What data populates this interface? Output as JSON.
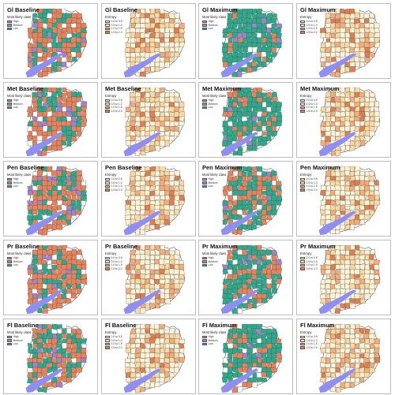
{
  "panels": [
    {
      "title": "Gl Baseline",
      "type": "class"
    },
    {
      "title": "Gl Baseline",
      "type": "entropy"
    },
    {
      "title": "Gl Maximum",
      "type": "class"
    },
    {
      "title": "Gl Maximum",
      "type": "entropy"
    },
    {
      "title": "Met Baseline",
      "type": "class"
    },
    {
      "title": "Met Baseline",
      "type": "entropy"
    },
    {
      "title": "Met Maximum",
      "type": "class"
    },
    {
      "title": "Met Maximum",
      "type": "entropy"
    },
    {
      "title": "Pen Baseline",
      "type": "class"
    },
    {
      "title": "Pen Baseline",
      "type": "entropy"
    },
    {
      "title": "Pen Maximum",
      "type": "class"
    },
    {
      "title": "Pen Maximum",
      "type": "entropy"
    },
    {
      "title": "Pr Baseline",
      "type": "class"
    },
    {
      "title": "Pr Baseline",
      "type": "entropy"
    },
    {
      "title": "Pr Maximum",
      "type": "class"
    },
    {
      "title": "Pr Maximum",
      "type": "entropy"
    },
    {
      "title": "Fl Baseline",
      "type": "class"
    },
    {
      "title": "Fl Baseline",
      "type": "entropy"
    },
    {
      "title": "Fl Maximum",
      "type": "class"
    },
    {
      "title": "Fl Maximum",
      "type": "entropy"
    }
  ],
  "legends": {
    "class": {
      "title": "Most likely class",
      "items": [
        {
          "label": "High",
          "color": "#e8825a"
        },
        {
          "label": "Medium",
          "color": "#a083c9"
        },
        {
          "label": "Low",
          "color": "#2fa98c"
        }
      ]
    },
    "entropy": {
      "title": "Entropy",
      "items": [
        {
          "label": "0.0 to 0.5",
          "color": "#fff3d6"
        },
        {
          "label": "0.5 to 1.0",
          "color": "#fbd9a2"
        },
        {
          "label": "1.0 to 1.5",
          "color": "#f3ad7a"
        },
        {
          "label": "1.5 to 2.0",
          "color": "#de7f4f"
        }
      ]
    }
  },
  "colors": {
    "water": "#8f8ff2",
    "boundary": "#444444"
  },
  "class_mix": {
    "Gl Baseline": [
      0.55,
      0.12,
      0.33
    ],
    "Gl Maximum": [
      0.15,
      0.05,
      0.8
    ],
    "Met Baseline": [
      0.55,
      0.15,
      0.3
    ],
    "Met Maximum": [
      0.2,
      0.05,
      0.75
    ],
    "Pen Baseline": [
      0.55,
      0.15,
      0.3
    ],
    "Pen Maximum": [
      0.45,
      0.05,
      0.5
    ],
    "Pr Baseline": [
      0.6,
      0.1,
      0.3
    ],
    "Pr Maximum": [
      0.3,
      0.05,
      0.65
    ],
    "Fl Baseline": [
      0.55,
      0.1,
      0.35
    ],
    "Fl Maximum": [
      0.2,
      0.05,
      0.75
    ]
  }
}
